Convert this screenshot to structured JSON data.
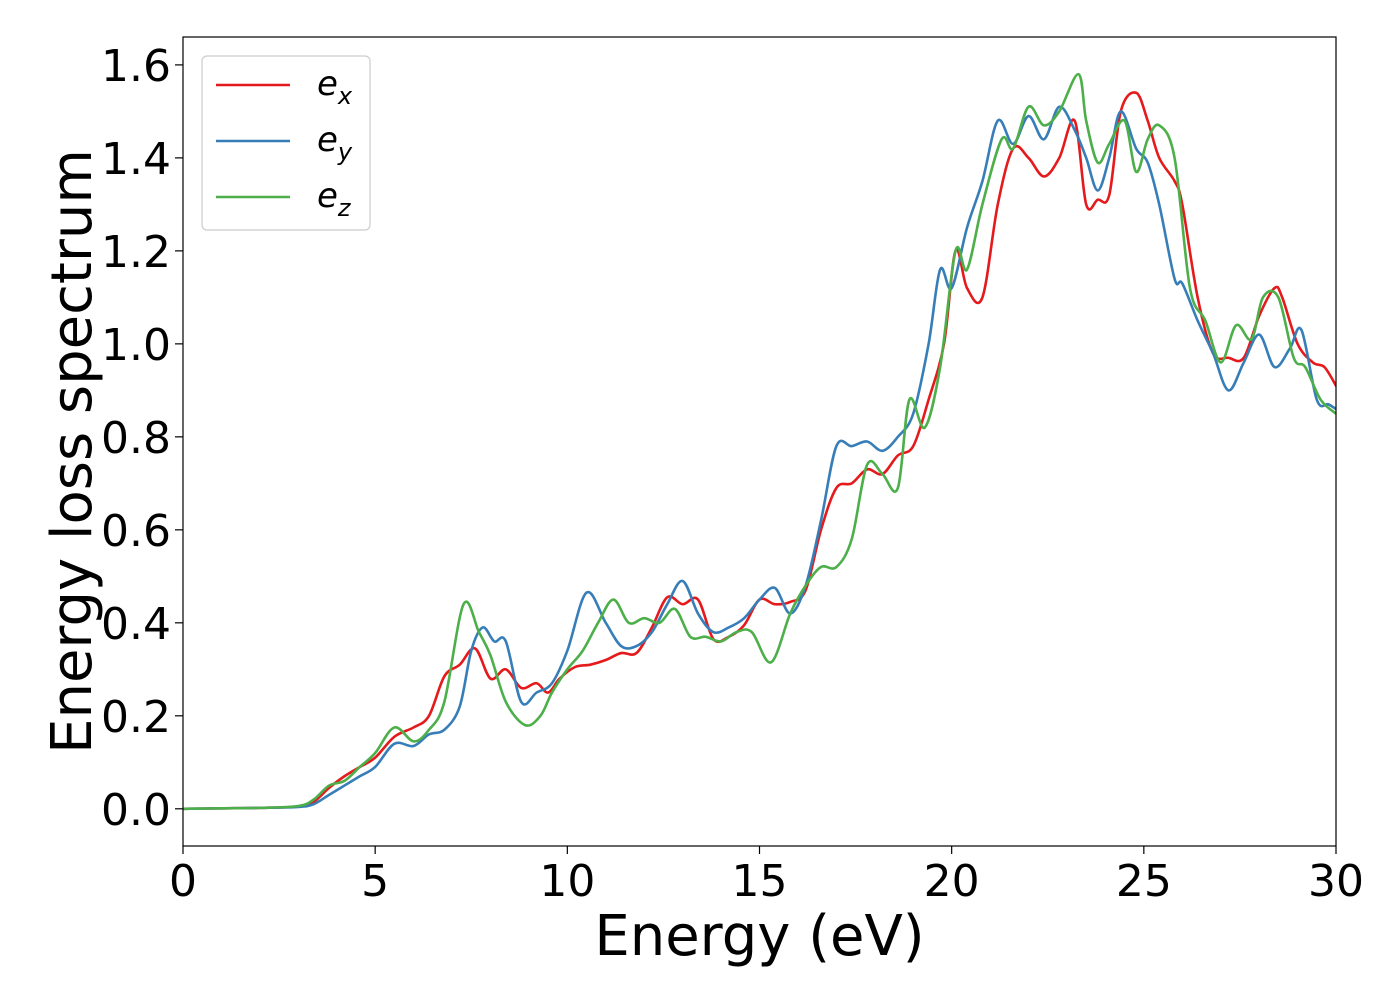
{
  "chart_data": {
    "type": "line",
    "xlabel": "Energy (eV)",
    "ylabel": "Energy loss spectrum",
    "xlim": [
      0,
      30
    ],
    "ylim": [
      -0.08,
      1.66
    ],
    "xticks": [
      0,
      5,
      10,
      15,
      20,
      25,
      30
    ],
    "yticks": [
      0.0,
      0.2,
      0.4,
      0.6,
      0.8,
      1.0,
      1.2,
      1.4,
      1.6
    ],
    "xtick_labels": [
      "0",
      "5",
      "10",
      "15",
      "20",
      "25",
      "30"
    ],
    "ytick_labels": [
      "0.0",
      "0.2",
      "0.4",
      "0.6",
      "0.8",
      "1.0",
      "1.2",
      "1.4",
      "1.6"
    ],
    "grid": false,
    "legend_position": "top-left",
    "series": [
      {
        "name": "e",
        "sub": "x",
        "color": "#e41a1c",
        "x": [
          0,
          1,
          2,
          3,
          3.4,
          3.8,
          4.2,
          4.6,
          5,
          5.5,
          6,
          6.4,
          6.8,
          7.2,
          7.6,
          8,
          8.4,
          8.8,
          9.2,
          9.5,
          9.8,
          10.2,
          10.6,
          11,
          11.4,
          11.8,
          12.2,
          12.6,
          13,
          13.4,
          13.8,
          14.2,
          14.6,
          15,
          15.4,
          15.8,
          16.2,
          16.6,
          17,
          17.4,
          17.8,
          18.2,
          18.6,
          19,
          19.4,
          19.8,
          20.1,
          20.4,
          20.8,
          21.2,
          21.6,
          22,
          22.4,
          22.8,
          23.2,
          23.5,
          23.8,
          24.1,
          24.4,
          24.8,
          25.1,
          25.4,
          25.8,
          26,
          26.4,
          26.8,
          27.2,
          27.6,
          28,
          28.4,
          28.6,
          29,
          29.4,
          29.7,
          30
        ],
        "y": [
          0,
          0.001,
          0.002,
          0.005,
          0.015,
          0.045,
          0.07,
          0.09,
          0.11,
          0.155,
          0.175,
          0.2,
          0.285,
          0.31,
          0.345,
          0.28,
          0.3,
          0.26,
          0.27,
          0.25,
          0.28,
          0.305,
          0.31,
          0.32,
          0.335,
          0.335,
          0.39,
          0.455,
          0.44,
          0.45,
          0.365,
          0.37,
          0.395,
          0.45,
          0.44,
          0.445,
          0.47,
          0.6,
          0.69,
          0.7,
          0.73,
          0.72,
          0.76,
          0.78,
          0.88,
          1.0,
          1.2,
          1.12,
          1.1,
          1.3,
          1.42,
          1.4,
          1.36,
          1.4,
          1.48,
          1.3,
          1.31,
          1.32,
          1.5,
          1.54,
          1.48,
          1.4,
          1.35,
          1.3,
          1.1,
          0.98,
          0.97,
          0.97,
          1.06,
          1.12,
          1.1,
          1.0,
          0.96,
          0.95,
          0.91
        ]
      },
      {
        "name": "e",
        "sub": "y",
        "color": "#377eb8",
        "x": [
          0,
          1,
          2,
          3,
          3.4,
          3.8,
          4.2,
          4.6,
          5,
          5.5,
          6,
          6.4,
          6.8,
          7.2,
          7.5,
          7.8,
          8.1,
          8.4,
          8.8,
          9.2,
          9.6,
          10,
          10.5,
          11,
          11.4,
          11.8,
          12.2,
          12.6,
          13,
          13.4,
          13.8,
          14.2,
          14.6,
          15,
          15.4,
          15.8,
          16.2,
          16.6,
          17,
          17.4,
          17.8,
          18.2,
          18.6,
          19,
          19.4,
          19.7,
          20,
          20.4,
          20.8,
          21.2,
          21.6,
          22,
          22.4,
          22.8,
          23.2,
          23.5,
          23.8,
          24.1,
          24.4,
          24.8,
          25.1,
          25.4,
          25.8,
          26,
          26.4,
          26.8,
          27.2,
          27.6,
          28,
          28.4,
          28.8,
          29.1,
          29.5,
          29.8,
          30
        ],
        "y": [
          0,
          0.001,
          0.002,
          0.004,
          0.01,
          0.03,
          0.05,
          0.07,
          0.09,
          0.14,
          0.135,
          0.16,
          0.17,
          0.22,
          0.34,
          0.39,
          0.36,
          0.36,
          0.23,
          0.25,
          0.27,
          0.34,
          0.465,
          0.4,
          0.35,
          0.35,
          0.38,
          0.44,
          0.49,
          0.42,
          0.38,
          0.39,
          0.41,
          0.45,
          0.475,
          0.42,
          0.48,
          0.62,
          0.78,
          0.78,
          0.79,
          0.77,
          0.8,
          0.85,
          1.0,
          1.16,
          1.12,
          1.25,
          1.35,
          1.48,
          1.43,
          1.49,
          1.44,
          1.51,
          1.46,
          1.4,
          1.33,
          1.4,
          1.5,
          1.42,
          1.39,
          1.3,
          1.14,
          1.13,
          1.05,
          0.98,
          0.9,
          0.96,
          1.02,
          0.95,
          0.99,
          1.03,
          0.88,
          0.87,
          0.86
        ]
      },
      {
        "name": "e",
        "sub": "z",
        "color": "#4daf4a",
        "x": [
          0,
          1,
          2,
          3,
          3.4,
          3.8,
          4.2,
          4.6,
          5,
          5.5,
          6,
          6.4,
          6.8,
          7.3,
          7.7,
          8,
          8.4,
          8.9,
          9.3,
          9.6,
          10,
          10.4,
          10.8,
          11.2,
          11.6,
          12,
          12.4,
          12.8,
          13.2,
          13.6,
          14,
          14.4,
          14.8,
          15.3,
          15.8,
          16.2,
          16.6,
          17,
          17.4,
          17.8,
          18.2,
          18.6,
          18.9,
          19.3,
          19.7,
          20.1,
          20.4,
          20.8,
          21.3,
          21.6,
          22,
          22.4,
          22.8,
          23.3,
          23.5,
          23.8,
          24.1,
          24.5,
          24.8,
          25.1,
          25.4,
          25.8,
          26.2,
          26.6,
          27,
          27.4,
          27.8,
          28.1,
          28.5,
          28.9,
          29.2,
          29.6,
          30
        ],
        "y": [
          0,
          0.001,
          0.002,
          0.006,
          0.02,
          0.05,
          0.06,
          0.09,
          0.12,
          0.175,
          0.145,
          0.17,
          0.23,
          0.44,
          0.38,
          0.33,
          0.23,
          0.18,
          0.2,
          0.25,
          0.3,
          0.34,
          0.4,
          0.45,
          0.4,
          0.41,
          0.4,
          0.43,
          0.37,
          0.37,
          0.36,
          0.38,
          0.38,
          0.315,
          0.42,
          0.48,
          0.52,
          0.52,
          0.58,
          0.74,
          0.72,
          0.69,
          0.88,
          0.82,
          0.95,
          1.2,
          1.16,
          1.3,
          1.44,
          1.42,
          1.51,
          1.47,
          1.5,
          1.58,
          1.48,
          1.39,
          1.43,
          1.48,
          1.37,
          1.44,
          1.47,
          1.4,
          1.12,
          1.05,
          0.96,
          1.04,
          1.01,
          1.1,
          1.1,
          0.97,
          0.95,
          0.88,
          0.85
        ]
      }
    ]
  }
}
